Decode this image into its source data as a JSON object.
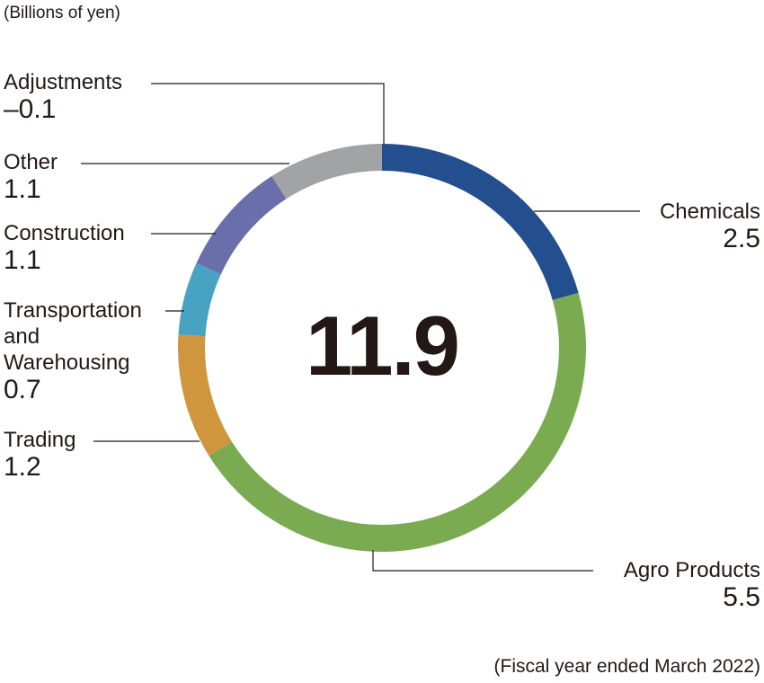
{
  "header": {
    "unit": "(Billions of yen)"
  },
  "footer": {
    "period": "(Fiscal year ended March 2022)"
  },
  "total": "11.9",
  "segments": [
    {
      "name": "Chemicals",
      "value": "2.5",
      "color": "#234f8f"
    },
    {
      "name": "Agro Products",
      "value": "5.5",
      "color": "#7aab50"
    },
    {
      "name": "Trading",
      "value": "1.2",
      "color": "#cf963e"
    },
    {
      "name": "Transportation and Warehousing",
      "line1": "Transportation",
      "line2": "and",
      "line3": "Warehousing",
      "value": "0.7",
      "color": "#48a3c2"
    },
    {
      "name": "Construction",
      "value": "1.1",
      "color": "#6a6fab"
    },
    {
      "name": "Other",
      "value": "1.1",
      "color": "#a1a3a4"
    },
    {
      "name": "Adjustments",
      "value": "–0.1",
      "color": null
    }
  ],
  "chart_data": {
    "type": "pie",
    "subtype": "donut",
    "title": "",
    "unit": "Billions of yen",
    "center_label": "11.9",
    "categories": [
      "Chemicals",
      "Agro Products",
      "Trading",
      "Transportation and Warehousing",
      "Construction",
      "Other",
      "Adjustments"
    ],
    "values": [
      2.5,
      5.5,
      1.2,
      0.7,
      1.1,
      1.1,
      -0.1
    ],
    "colors": [
      "#234f8f",
      "#7aab50",
      "#cf963e",
      "#48a3c2",
      "#6a6fab",
      "#a1a3a4",
      null
    ],
    "total": 11.9,
    "annotation": "(Fiscal year ended March 2022)",
    "legend_position": "callout labels"
  }
}
